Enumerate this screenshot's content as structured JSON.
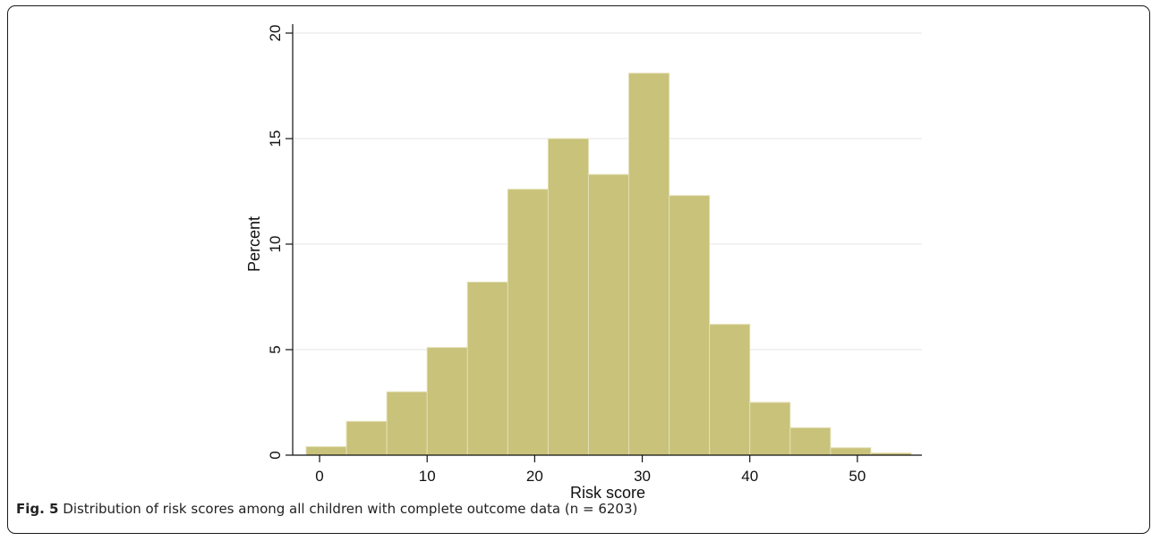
{
  "chart_data": {
    "type": "bar",
    "subtype": "histogram",
    "xlabel": "Risk score",
    "ylabel": "Percent",
    "xlim": [
      -2.5,
      56
    ],
    "ylim": [
      0,
      20
    ],
    "x_ticks": [
      0,
      10,
      20,
      30,
      40,
      50
    ],
    "y_ticks": [
      0,
      5,
      10,
      15,
      20
    ],
    "grid": true,
    "bin_width": 3.75,
    "bins": [
      {
        "x0": -1.25,
        "x1": 2.5,
        "value": 0.4
      },
      {
        "x0": 2.5,
        "x1": 6.25,
        "value": 1.6
      },
      {
        "x0": 6.25,
        "x1": 10.0,
        "value": 3.0
      },
      {
        "x0": 10.0,
        "x1": 13.75,
        "value": 5.1
      },
      {
        "x0": 13.75,
        "x1": 17.5,
        "value": 8.2
      },
      {
        "x0": 17.5,
        "x1": 21.25,
        "value": 12.6
      },
      {
        "x0": 21.25,
        "x1": 25.0,
        "value": 15.0
      },
      {
        "x0": 25.0,
        "x1": 28.75,
        "value": 13.3
      },
      {
        "x0": 28.75,
        "x1": 32.5,
        "value": 18.1
      },
      {
        "x0": 32.5,
        "x1": 36.25,
        "value": 12.3
      },
      {
        "x0": 36.25,
        "x1": 40.0,
        "value": 6.2
      },
      {
        "x0": 40.0,
        "x1": 43.75,
        "value": 2.5
      },
      {
        "x0": 43.75,
        "x1": 47.5,
        "value": 1.3
      },
      {
        "x0": 47.5,
        "x1": 51.25,
        "value": 0.35
      },
      {
        "x0": 51.25,
        "x1": 55.0,
        "value": 0.1
      }
    ],
    "colors": {
      "bar_fill": "#c8c27a",
      "bar_edge": "#e3dfb4",
      "grid": "#e6e6e6",
      "axis": "#111111"
    }
  },
  "caption": {
    "label": "Fig. 5",
    "text": "Distribution of risk scores among all children with complete outcome data (n = 6203)"
  }
}
